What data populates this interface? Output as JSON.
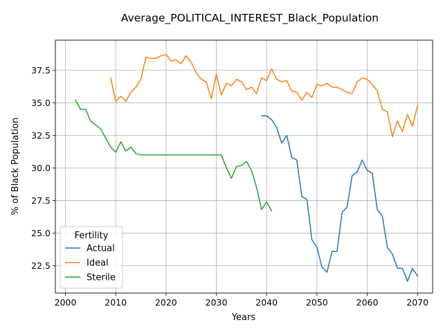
{
  "chart_data": {
    "type": "line",
    "title": "Average_POLITICAL_INTEREST_Black_Population",
    "xlabel": "Years",
    "ylabel": "% of Black Population",
    "xlim": [
      1998,
      2073
    ],
    "ylim": [
      20.4,
      39.8
    ],
    "xticks": [
      2000,
      2010,
      2020,
      2030,
      2040,
      2050,
      2060,
      2070
    ],
    "yticks": [
      22.5,
      25.0,
      27.5,
      30.0,
      32.5,
      35.0,
      37.5
    ],
    "ytick_labels": [
      "22.5",
      "25.0",
      "27.5",
      "30.0",
      "32.5",
      "35.0",
      "37.5"
    ],
    "grid": true,
    "legend": {
      "title": "Fertility",
      "position": "lower-left"
    },
    "series": [
      {
        "name": "Actual",
        "color": "#1f77b4",
        "x": [
          2039,
          2040,
          2041,
          2042,
          2043,
          2044,
          2045,
          2046,
          2047,
          2048,
          2049,
          2050,
          2051,
          2052,
          2053,
          2054,
          2055,
          2056,
          2057,
          2058,
          2059,
          2060,
          2061,
          2062,
          2063,
          2064,
          2065,
          2066,
          2067,
          2068,
          2069,
          2070
        ],
        "y": [
          34.0,
          34.0,
          33.7,
          33.1,
          31.9,
          32.5,
          30.8,
          30.6,
          27.8,
          27.6,
          24.5,
          23.9,
          22.4,
          22.0,
          23.6,
          23.6,
          26.6,
          27.0,
          29.4,
          29.7,
          30.6,
          29.8,
          29.6,
          26.8,
          26.3,
          23.9,
          23.4,
          22.3,
          22.3,
          21.3,
          22.3,
          21.7
        ]
      },
      {
        "name": "Ideal",
        "color": "#ff7f0e",
        "x": [
          2009,
          2010,
          2011,
          2012,
          2013,
          2014,
          2015,
          2016,
          2017,
          2018,
          2019,
          2020,
          2021,
          2022,
          2023,
          2024,
          2025,
          2026,
          2027,
          2028,
          2029,
          2030,
          2031,
          2032,
          2033,
          2034,
          2035,
          2036,
          2037,
          2038,
          2039,
          2040,
          2041,
          2042,
          2043,
          2044,
          2045,
          2046,
          2047,
          2048,
          2049,
          2050,
          2051,
          2052,
          2053,
          2054,
          2055,
          2056,
          2057,
          2058,
          2059,
          2060,
          2061,
          2062,
          2063,
          2064,
          2065,
          2066,
          2067,
          2068,
          2069,
          2070
        ],
        "y": [
          36.9,
          35.1,
          35.5,
          35.1,
          35.8,
          36.2,
          36.8,
          38.5,
          38.4,
          38.4,
          38.6,
          38.7,
          38.2,
          38.3,
          38.0,
          38.6,
          38.1,
          37.3,
          36.8,
          36.6,
          35.3,
          37.2,
          35.6,
          36.5,
          36.3,
          36.8,
          36.6,
          36.0,
          36.2,
          35.7,
          36.9,
          36.7,
          37.6,
          36.8,
          36.6,
          36.7,
          35.9,
          35.8,
          35.2,
          35.8,
          35.4,
          36.4,
          36.3,
          36.5,
          36.2,
          36.2,
          36.0,
          35.8,
          35.7,
          36.6,
          36.9,
          36.8,
          36.4,
          35.9,
          34.5,
          34.3,
          32.4,
          33.6,
          32.8,
          34.1,
          33.2,
          34.8
        ]
      },
      {
        "name": "Sterile",
        "color": "#2ca02c",
        "x": [
          2002,
          2003,
          2004,
          2005,
          2006,
          2007,
          2008,
          2009,
          2010,
          2011,
          2012,
          2013,
          2014,
          2015,
          2016,
          2017,
          2018,
          2019,
          2020,
          2021,
          2022,
          2023,
          2024,
          2025,
          2026,
          2027,
          2028,
          2029,
          2030,
          2031,
          2032,
          2033,
          2034,
          2035,
          2036,
          2037,
          2038,
          2039,
          2040,
          2041
        ],
        "y": [
          35.2,
          34.5,
          34.5,
          33.6,
          33.3,
          33.0,
          32.3,
          31.6,
          31.2,
          32.0,
          31.3,
          31.6,
          31.1,
          31.0,
          31.0,
          31.0,
          31.0,
          31.0,
          31.0,
          31.0,
          31.0,
          31.0,
          31.0,
          31.0,
          31.0,
          31.0,
          31.0,
          31.0,
          31.0,
          31.0,
          30.0,
          29.2,
          30.1,
          30.2,
          30.5,
          29.8,
          28.5,
          26.8,
          27.4,
          26.7
        ]
      }
    ]
  }
}
